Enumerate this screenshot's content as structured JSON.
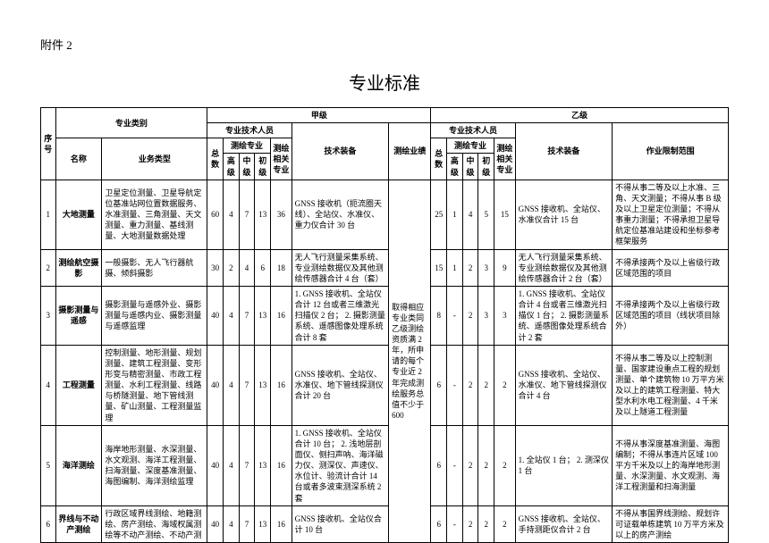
{
  "attachment_label": "附件 2",
  "doc_title": "专业标准",
  "headers": {
    "seq": "序号",
    "category": "专业类别",
    "name": "名称",
    "biz_type": "业务类型",
    "grade_a": "甲级",
    "grade_b": "乙级",
    "tech_staff": "专业技术人员",
    "total": "总数",
    "survey_major": "测绘专业",
    "senior": "高级",
    "mid": "中级",
    "junior": "初级",
    "related_major": "测绘相关专业",
    "equipment": "技术装备",
    "performance": "测绘业绩",
    "scope": "作业限制范围"
  },
  "rows": [
    {
      "seq": "1",
      "name": "大地测量",
      "biz": "卫星定位测量、卫星导航定位基准站网位置数据服务、水准测量、三角测量、天文测量、重力测量、基线测量、大地测量数据处理",
      "a_total": "60",
      "a_sr": "4",
      "a_md": "7",
      "a_jr": "13",
      "a_rel": "36",
      "a_equip": "GNSS 接收机（扼流圈天线）、全站仪、水准仪、重力仪合计 30 台",
      "b_total": "25",
      "b_sr": "1",
      "b_md": "4",
      "b_jr": "5",
      "b_rel": "15",
      "b_equip": "GNSS 接收机、全站仪、水准仪合计 15 台",
      "b_scope": "不得从事二等及以上水准、三角、天文测量；不得从事 B 级及以上卫星定位测量；不得从事重力测量；不得承担卫星导航定位基准站建设和坐标参考框架服务"
    },
    {
      "seq": "2",
      "name": "测绘航空摄影",
      "biz": "一般摄影、无人飞行器航摄、倾斜摄影",
      "a_total": "30",
      "a_sr": "2",
      "a_md": "4",
      "a_jr": "6",
      "a_rel": "18",
      "a_equip": "无人飞行测量采集系统、专业测绘数据仪及其他测绘传感器合计 4 台（套）",
      "b_total": "15",
      "b_sr": "1",
      "b_md": "2",
      "b_jr": "3",
      "b_rel": "9",
      "b_equip": "无人飞行测量采集系统、专业测绘数据仪及其他测绘传感器合计 2 台（套）",
      "b_scope": "不得承接两个及以上省级行政区域范围的项目"
    },
    {
      "seq": "3",
      "name": "摄影测量与遥感",
      "biz": "摄影测量与遥感外业、摄影测量与遥感内业、摄影测量与遥感监理",
      "a_total": "40",
      "a_sr": "4",
      "a_md": "7",
      "a_jr": "13",
      "a_rel": "16",
      "a_equip": "1. GNSS 接收机、全站仪合计 12 台或者三维激光扫描仪 2 台；\n2. 摄影测量系统、遥感图像处理系统合计 8 套",
      "b_total": "8",
      "b_sr": "-",
      "b_md": "2",
      "b_jr": "3",
      "b_rel": "3",
      "b_equip": "1. GNSS 接收机、全站仪合计 4 台或者三维激光扫描仪 1 台；\n2. 摄影测量系统、遥感图像处理系统合计 2 套",
      "b_scope": "不得承接两个及以上省级行政区域范围的项目（线状项目除外）"
    },
    {
      "seq": "4",
      "name": "工程测量",
      "biz": "控制测量、地形测量、规划测量、建筑工程测量、变形形变与精密测量、市政工程测量、水利工程测量、线路与桥隧测量、地下管线测量、矿山测量、工程测量监理",
      "a_total": "40",
      "a_sr": "4",
      "a_md": "7",
      "a_jr": "13",
      "a_rel": "16",
      "a_equip": "GNSS 接收机、全站仪、水准仪、地下管线探测仪合计 20 台",
      "b_total": "6",
      "b_sr": "-",
      "b_md": "2",
      "b_jr": "2",
      "b_rel": "2",
      "b_equip": "GNSS 接收机、全站仪、水准仪、地下管线探测仪合计 4 台",
      "b_scope": "不得从事二等及以上控制测量、国家建设重点工程的规划测量、单个建筑物 10 万平方米及以上的建筑工程测量、特大型水利水电工程测量、4 千米及以上隧道工程测量"
    },
    {
      "seq": "5",
      "name": "海洋测绘",
      "biz": "海岸地形测量、水深测量、水文观测、海洋工程测量、扫海测量、深度基准测量、海图编制、海洋测绘监理",
      "a_total": "40",
      "a_sr": "4",
      "a_md": "7",
      "a_jr": "13",
      "a_rel": "16",
      "a_equip": "1. GNSS 接收机、全站仪合计 10 台；\n2. 浅地层剖面仪、侧扫声呐、海洋磁力仪、测深仪、声速仪、水位计、验流计合计 14 台或者多波束测深系统 2 套",
      "b_total": "6",
      "b_sr": "-",
      "b_md": "2",
      "b_jr": "2",
      "b_rel": "2",
      "b_equip": "1. 全站仪 1 台；\n2. 测深仪 1 台",
      "b_scope": "不得从事深度基准测量、海图编制；不得从事连片区域 100 平方千米及以上的海岸地形测量、水深测量、水文观测、海洋工程测量和扫海测量"
    },
    {
      "seq": "6",
      "name": "界线与不动产测绘",
      "biz": "行政区域界线测绘、地籍测绘、房产测绘、海域权属测绘等不动产测绘、不动产测",
      "a_total": "40",
      "a_sr": "4",
      "a_md": "7",
      "a_jr": "13",
      "a_rel": "16",
      "a_equip": "GNSS 接收机、全站仪合计 10 台",
      "b_total": "6",
      "b_sr": "-",
      "b_md": "2",
      "b_jr": "2",
      "b_rel": "2",
      "b_equip": "GNSS 接收机、全站仪、手持测距仪合计 2 台",
      "b_scope": "不得从事国界线测绘、规划许可证载单栋建筑 10 万平方米及以上的房产测绘"
    }
  ],
  "performance_text": "取得相应专业类同乙级测绘资质满 2 年，所申请的每个专业近 2 年完成测绘服务总值不少于 600"
}
